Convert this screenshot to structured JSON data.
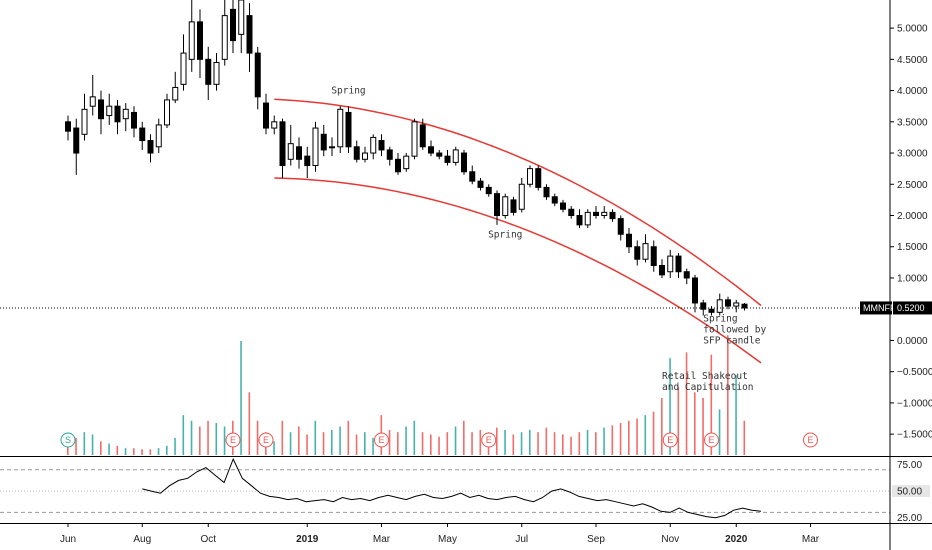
{
  "colors": {
    "up": "#26a69a",
    "down": "#ef5350",
    "candle": "#000000",
    "channel": "#e53935",
    "rsi": "#000000",
    "tag_bg": "#000000"
  },
  "ticker": {
    "symbol": "MMNFF",
    "last": "0.5200",
    "last_value": 0.52
  },
  "chart_data": [
    {
      "type": "candlestick",
      "title": "",
      "ylim": [
        -1.85,
        5.45
      ],
      "yticks": [
        {
          "v": 5.0,
          "label": "5.0000"
        },
        {
          "v": 4.5,
          "label": "4.5000"
        },
        {
          "v": 4.0,
          "label": "4.0000"
        },
        {
          "v": 3.5,
          "label": "3.5000"
        },
        {
          "v": 3.0,
          "label": "3.0000"
        },
        {
          "v": 2.5,
          "label": "2.5000"
        },
        {
          "v": 2.0,
          "label": "2.0000"
        },
        {
          "v": 1.5,
          "label": "1.5000"
        },
        {
          "v": 1.0,
          "label": "1.0000"
        },
        {
          "v": 0.0,
          "label": "0.0000"
        },
        {
          "v": -0.5,
          "label": "−0.5000"
        },
        {
          "v": -1.0,
          "label": "−1.0000"
        },
        {
          "v": -1.5,
          "label": "−1.5000"
        }
      ],
      "xticks": [
        {
          "label": "Jun",
          "i": 0
        },
        {
          "label": "Aug",
          "i": 9
        },
        {
          "label": "Oct",
          "i": 17
        },
        {
          "label": "2019",
          "i": 29,
          "bold": true
        },
        {
          "label": "Mar",
          "i": 38
        },
        {
          "label": "May",
          "i": 46
        },
        {
          "label": "Jul",
          "i": 55
        },
        {
          "label": "Sep",
          "i": 64
        },
        {
          "label": "Nov",
          "i": 73
        },
        {
          "label": "2020",
          "i": 81,
          "bold": true
        },
        {
          "label": "Mar",
          "i": 90
        }
      ],
      "candles": [
        [
          3.5,
          3.35,
          3.6,
          3.2
        ],
        [
          3.4,
          3.0,
          3.55,
          2.65
        ],
        [
          3.3,
          3.7,
          3.95,
          3.2
        ],
        [
          3.75,
          3.9,
          4.25,
          3.6
        ],
        [
          3.85,
          3.55,
          4.0,
          3.3
        ],
        [
          3.6,
          3.75,
          3.95,
          3.45
        ],
        [
          3.75,
          3.5,
          3.85,
          3.3
        ],
        [
          3.55,
          3.7,
          3.8,
          3.35
        ],
        [
          3.65,
          3.4,
          3.75,
          3.25
        ],
        [
          3.4,
          3.2,
          3.5,
          3.05
        ],
        [
          3.2,
          3.0,
          3.3,
          2.85
        ],
        [
          3.1,
          3.45,
          3.55,
          3.0
        ],
        [
          3.45,
          3.85,
          3.95,
          3.4
        ],
        [
          3.85,
          4.05,
          4.3,
          3.8
        ],
        [
          4.1,
          4.6,
          4.9,
          4.0
        ],
        [
          4.5,
          5.1,
          5.45,
          4.3
        ],
        [
          5.1,
          4.5,
          5.3,
          4.2
        ],
        [
          4.5,
          4.1,
          4.7,
          3.85
        ],
        [
          4.1,
          4.45,
          4.6,
          4.0
        ],
        [
          4.5,
          5.2,
          5.45,
          4.4
        ],
        [
          5.3,
          4.8,
          5.45,
          4.6
        ],
        [
          4.9,
          5.45,
          5.45,
          4.6
        ],
        [
          5.2,
          4.6,
          5.4,
          4.3
        ],
        [
          4.6,
          3.9,
          4.7,
          3.7
        ],
        [
          3.8,
          3.4,
          3.95,
          3.3
        ],
        [
          3.4,
          3.5,
          3.6,
          3.3
        ],
        [
          3.5,
          2.8,
          3.55,
          2.6
        ],
        [
          2.9,
          3.15,
          3.45,
          2.8
        ],
        [
          3.1,
          2.9,
          3.25,
          2.75
        ],
        [
          2.95,
          2.8,
          3.1,
          2.6
        ],
        [
          2.8,
          3.4,
          3.5,
          2.7
        ],
        [
          3.3,
          3.05,
          3.45,
          2.95
        ],
        [
          3.1,
          3.1,
          3.25,
          2.95
        ],
        [
          3.1,
          3.7,
          3.75,
          3.0
        ],
        [
          3.65,
          3.1,
          3.75,
          3.0
        ],
        [
          3.1,
          2.9,
          3.2,
          2.85
        ],
        [
          2.9,
          3.0,
          3.1,
          2.85
        ],
        [
          3.0,
          3.25,
          3.3,
          2.9
        ],
        [
          3.2,
          3.05,
          3.3,
          2.95
        ],
        [
          3.05,
          2.9,
          3.1,
          2.8
        ],
        [
          2.9,
          2.7,
          3.0,
          2.65
        ],
        [
          2.75,
          2.95,
          3.0,
          2.7
        ],
        [
          2.95,
          3.5,
          3.55,
          2.9
        ],
        [
          3.45,
          3.1,
          3.55,
          3.05
        ],
        [
          3.1,
          3.0,
          3.2,
          2.95
        ],
        [
          3.0,
          2.95,
          3.05,
          2.9
        ],
        [
          2.95,
          2.85,
          3.05,
          2.8
        ],
        [
          2.85,
          3.05,
          3.1,
          2.8
        ],
        [
          3.0,
          2.7,
          3.05,
          2.65
        ],
        [
          2.7,
          2.55,
          2.8,
          2.5
        ],
        [
          2.55,
          2.45,
          2.6,
          2.4
        ],
        [
          2.45,
          2.35,
          2.5,
          2.3
        ],
        [
          2.35,
          2.0,
          2.4,
          1.85
        ],
        [
          2.0,
          2.3,
          2.35,
          1.95
        ],
        [
          2.25,
          2.05,
          2.3,
          2.0
        ],
        [
          2.1,
          2.5,
          2.6,
          2.05
        ],
        [
          2.5,
          2.75,
          2.8,
          2.45
        ],
        [
          2.75,
          2.45,
          2.8,
          2.4
        ],
        [
          2.45,
          2.3,
          2.5,
          2.25
        ],
        [
          2.3,
          2.2,
          2.35,
          2.15
        ],
        [
          2.2,
          2.1,
          2.25,
          2.05
        ],
        [
          2.1,
          2.0,
          2.15,
          1.95
        ],
        [
          2.0,
          1.85,
          2.1,
          1.8
        ],
        [
          1.85,
          2.05,
          2.1,
          1.8
        ],
        [
          2.05,
          2.0,
          2.15,
          1.95
        ],
        [
          2.0,
          2.05,
          2.15,
          1.95
        ],
        [
          2.05,
          1.95,
          2.1,
          1.9
        ],
        [
          1.95,
          1.7,
          2.0,
          1.6
        ],
        [
          1.7,
          1.5,
          1.8,
          1.4
        ],
        [
          1.5,
          1.3,
          1.6,
          1.2
        ],
        [
          1.3,
          1.55,
          1.7,
          1.25
        ],
        [
          1.5,
          1.2,
          1.6,
          1.1
        ],
        [
          1.2,
          1.05,
          1.3,
          1.0
        ],
        [
          1.1,
          1.35,
          1.45,
          1.0
        ],
        [
          1.35,
          1.1,
          1.4,
          1.0
        ],
        [
          1.1,
          1.0,
          1.15,
          0.9
        ],
        [
          1.0,
          0.6,
          1.05,
          0.45
        ],
        [
          0.6,
          0.5,
          0.65,
          0.4
        ],
        [
          0.5,
          0.45,
          0.55,
          0.4
        ],
        [
          0.45,
          0.65,
          0.75,
          0.4
        ],
        [
          0.65,
          0.55,
          0.7,
          0.5
        ],
        [
          0.55,
          0.6,
          0.65,
          0.45
        ],
        [
          0.58,
          0.52,
          0.6,
          0.48
        ]
      ],
      "channel": {
        "upper_start": 3.86,
        "upper_end": 0.56,
        "lower_start": 2.6,
        "lower_end": -0.36
      },
      "annotations": [
        {
          "label": "Spring",
          "i": 34,
          "v": 3.95
        },
        {
          "label": "Spring",
          "i": 53,
          "v": 1.65
        },
        {
          "lines": [
            "Spring",
            "followed by",
            "SFP candle"
          ],
          "i": 77,
          "v": 0.3
        },
        {
          "lines": [
            "Retail Shakeout",
            "and Capitulation"
          ],
          "i": 72,
          "v": -0.62
        }
      ],
      "volume": [
        0.1,
        0.15,
        0.2,
        0.18,
        0.12,
        0.1,
        0.08,
        0.06,
        0.06,
        0.05,
        0.05,
        0.06,
        0.08,
        0.15,
        0.35,
        0.3,
        0.25,
        0.3,
        0.28,
        0.25,
        0.3,
        1.0,
        0.55,
        0.3,
        0.2,
        0.12,
        0.3,
        0.2,
        0.25,
        0.18,
        0.3,
        0.2,
        0.22,
        0.25,
        0.3,
        0.18,
        0.2,
        0.15,
        0.35,
        0.22,
        0.2,
        0.25,
        0.3,
        0.2,
        0.18,
        0.16,
        0.2,
        0.25,
        0.3,
        0.2,
        0.22,
        0.2,
        0.24,
        0.22,
        0.18,
        0.2,
        0.22,
        0.2,
        0.24,
        0.2,
        0.18,
        0.16,
        0.2,
        0.22,
        0.2,
        0.24,
        0.26,
        0.28,
        0.3,
        0.32,
        0.35,
        0.38,
        0.5,
        0.85,
        0.6,
        0.9,
        0.55,
        0.5,
        0.88,
        0.4,
        1.05,
        0.7,
        0.3
      ],
      "events": [
        {
          "label": "S",
          "i": 0,
          "kind": "split"
        },
        {
          "label": "E",
          "i": 20,
          "kind": "earnings"
        },
        {
          "label": "E",
          "i": 24,
          "kind": "earnings"
        },
        {
          "label": "E",
          "i": 38,
          "kind": "earnings"
        },
        {
          "label": "E",
          "i": 51,
          "kind": "earnings"
        },
        {
          "label": "E",
          "i": 73,
          "kind": "earnings"
        },
        {
          "label": "E",
          "i": 78,
          "kind": "earnings"
        },
        {
          "label": "E",
          "i": 90,
          "kind": "earnings"
        }
      ]
    },
    {
      "type": "line",
      "title": "",
      "ylim": [
        20,
        82
      ],
      "yticks": [
        {
          "v": 75,
          "label": "75.00"
        },
        {
          "v": 50,
          "label": "50.00"
        },
        {
          "v": 25,
          "label": "25.00"
        }
      ],
      "rsi": [
        52,
        50,
        48,
        55,
        60,
        62,
        68,
        72,
        65,
        58,
        80,
        62,
        55,
        48,
        45,
        44,
        42,
        43,
        40,
        41,
        42,
        40,
        44,
        42,
        43,
        41,
        44,
        46,
        44,
        42,
        45,
        47,
        44,
        43,
        45,
        48,
        44,
        46,
        43,
        42,
        44,
        45,
        42,
        40,
        44,
        50,
        52,
        49,
        45,
        43,
        41,
        42,
        40,
        38,
        36,
        38,
        35,
        31,
        30,
        34,
        30,
        28,
        26,
        25,
        27,
        32,
        34,
        32,
        31
      ]
    }
  ]
}
